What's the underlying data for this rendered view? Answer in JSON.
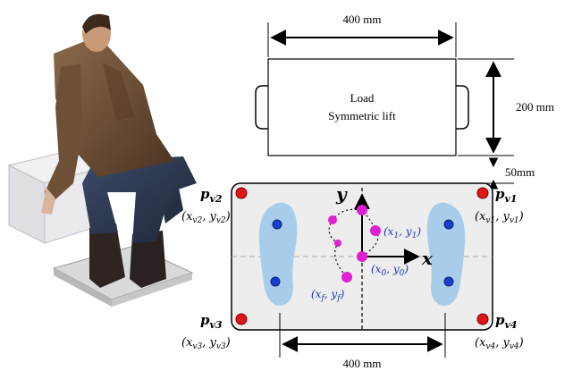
{
  "load": {
    "width_label": "400 mm",
    "height_label": "200 mm",
    "gap_label": "50mm",
    "title_line1": "Load",
    "title_line2": "Symmetric lift"
  },
  "platform": {
    "width_label": "400 mm",
    "axis_x": "x",
    "axis_y": "y",
    "corners": {
      "v1": {
        "label": "p",
        "sub": "v1",
        "coord": "(x",
        "coord_sub_x": "v1",
        "coord_mid": ", y",
        "coord_sub_y": "v1",
        "coord_end": ")"
      },
      "v2": {
        "label": "p",
        "sub": "v2",
        "coord": "(x",
        "coord_sub_x": "v2",
        "coord_mid": ", y",
        "coord_sub_y": "v2",
        "coord_end": ")"
      },
      "v3": {
        "label": "p",
        "sub": "v3",
        "coord": "(x",
        "coord_sub_x": "v3",
        "coord_mid": ", y",
        "coord_sub_y": "v3",
        "coord_end": ")"
      },
      "v4": {
        "label": "p",
        "sub": "v4",
        "coord": "(x",
        "coord_sub_x": "v4",
        "coord_mid": ", y",
        "coord_sub_y": "v4",
        "coord_end": ")"
      }
    },
    "cop_points": {
      "p0": {
        "open": "(x",
        "sx": "0",
        "mid": ", y",
        "sy": "0",
        "close": ")"
      },
      "p1": {
        "open": "(x",
        "sx": "1",
        "mid": ", y",
        "sy": "1",
        "close": ")"
      },
      "pf": {
        "open": "(x",
        "sx": "f",
        "mid": ", y",
        "sy": "f",
        "close": ")"
      }
    }
  },
  "colors": {
    "corner_dot": "#e01515",
    "foot_fill": "#a8cdea",
    "foot_dot": "#1a3fcf",
    "cop_point": "#e020d0",
    "cop_label": "#2030c8",
    "platform_fill": "#ededed"
  }
}
